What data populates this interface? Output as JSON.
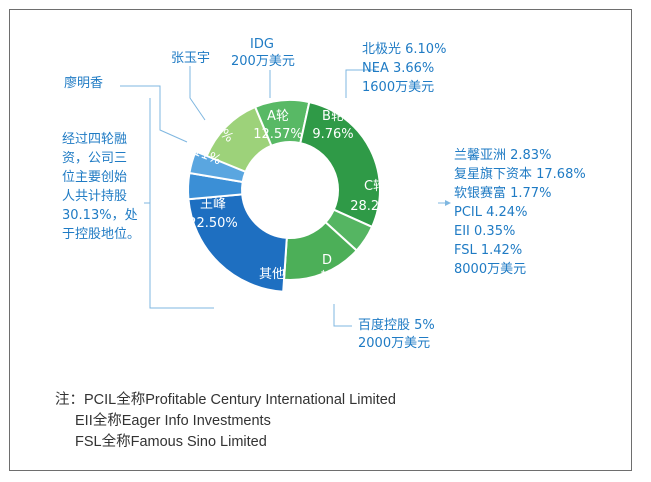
{
  "chart_data": {
    "type": "pie",
    "segments": [
      {
        "id": "round-a",
        "label": "A轮",
        "value": 12.57,
        "value_text": "12.57%",
        "color": "#9dd27a"
      },
      {
        "id": "round-b",
        "label": "B轮",
        "value": 9.76,
        "value_text": "9.76%",
        "color": "#58b965"
      },
      {
        "id": "round-c",
        "label": "C轮",
        "value": 28.29,
        "value_text": "28.29%",
        "color": "#2f9a47"
      },
      {
        "id": "round-d",
        "label": "D轮",
        "value": 5,
        "value_text": "5%",
        "color": "#55b562"
      },
      {
        "id": "other",
        "label": "其他",
        "value": 14.33,
        "value_text": "",
        "color": "#4caf58"
      },
      {
        "id": "wang-feng",
        "label": "王峰",
        "value": 22.5,
        "value_text": "22.50%",
        "color": "#1e6fc1"
      },
      {
        "id": "liao-mingxiang",
        "label": "",
        "value": 4.11,
        "value_text": "4.11%",
        "color": "#3b8fd6"
      },
      {
        "id": "zhang-yuyu",
        "label": "",
        "value": 3.51,
        "value_text": "3.51%",
        "color": "#5aa6e0"
      }
    ]
  },
  "callouts": {
    "zhang_yuyu": "张玉宇",
    "liao_mingxiang": "廖明香",
    "idg_line1": "IDG",
    "idg_line2": "200万美元",
    "b_round_lines": [
      "北极光 6.10%",
      "NEA 3.66%",
      "1600万美元"
    ],
    "c_round_lines": [
      "兰馨亚洲 2.83%",
      "复星旗下资本 17.68%",
      "软银赛富 1.77%",
      "PCIL 4.24%",
      "EII 0.35%",
      "FSL 1.42%",
      "8000万美元"
    ],
    "d_round_lines": [
      "百度控股 5%",
      "2000万美元"
    ],
    "founders_note_lines": [
      "经过四轮融",
      "资，公司三",
      "位主要创始",
      "人共计持股",
      "30.13%，处",
      "于控股地位。"
    ]
  },
  "footnotes": [
    "注：PCIL全称Profitable Century International Limited",
    "EII全称Eager Info Investments",
    "FSL全称Famous Sino Limited"
  ],
  "colors": {
    "callout_blue": "#1f7bc4",
    "line_blue": "#7fb7e0"
  }
}
